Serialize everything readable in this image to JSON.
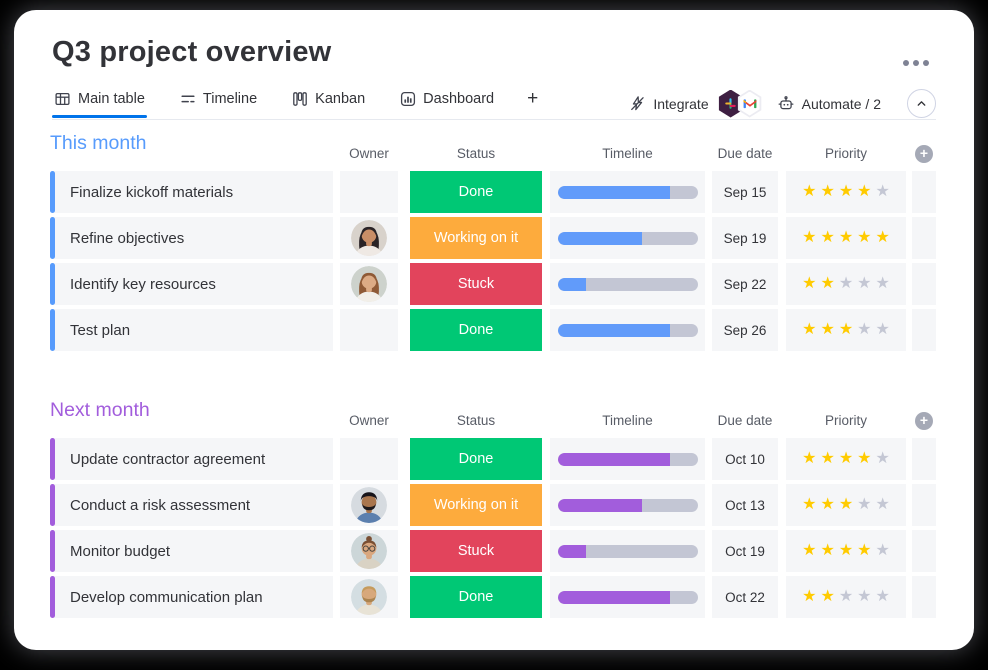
{
  "header": {
    "title": "Q3 project overview",
    "tabs": [
      {
        "label": "Main table",
        "icon": "table-icon",
        "active": true
      },
      {
        "label": "Timeline",
        "icon": "timeline-icon",
        "active": false
      },
      {
        "label": "Kanban",
        "icon": "kanban-icon",
        "active": false
      },
      {
        "label": "Dashboard",
        "icon": "dashboard-icon",
        "active": false
      }
    ],
    "add_view_label": "+",
    "integrate_label": "Integrate",
    "automate_label": "Automate / 2"
  },
  "columns": [
    "Owner",
    "Status",
    "Timeline",
    "Due date",
    "Priority"
  ],
  "icons": {
    "star_glyph": "★",
    "add_column_glyph": "+"
  },
  "colors": {
    "status": {
      "Done": "#00c875",
      "Working on it": "#fdab3d",
      "Stuck": "#e2445c"
    },
    "star_filled": "#ffcb00",
    "star_empty": "#c4c7d4",
    "timeline_track": "#c3c6d4",
    "row_bg": "#f5f6f8",
    "active_tab_underline": "#0073ea"
  },
  "groups": [
    {
      "title": "This month",
      "accent_color": "#579bfc",
      "timeline_fill": "#619bfa",
      "rows": [
        {
          "task": "Finalize kickoff materials",
          "owner": null,
          "status": "Done",
          "timeline_pct": 80,
          "due": "Sep 15",
          "priority": 4
        },
        {
          "task": "Refine objectives",
          "owner": {
            "label": "avatar-dark-haired-woman",
            "style": "long",
            "hair": "#2a2326",
            "skin": "#c98e67",
            "shirt": "#efe9e4",
            "bg": "#d8d2cb"
          },
          "status": "Working on it",
          "timeline_pct": 60,
          "due": "Sep 19",
          "priority": 5
        },
        {
          "task": "Identify key resources",
          "owner": {
            "label": "avatar-auburn-haired-woman",
            "style": "long",
            "hair": "#8f5a36",
            "skin": "#dcab85",
            "shirt": "#f2efe9",
            "bg": "#cdd2cc"
          },
          "status": "Stuck",
          "timeline_pct": 20,
          "due": "Sep 22",
          "priority": 2
        },
        {
          "task": "Test plan",
          "owner": null,
          "status": "Done",
          "timeline_pct": 80,
          "due": "Sep 26",
          "priority": 3
        }
      ]
    },
    {
      "title": "Next month",
      "accent_color": "#a25ddc",
      "timeline_fill": "#a25ddc",
      "rows": [
        {
          "task": "Update contractor agreement",
          "owner": null,
          "status": "Done",
          "timeline_pct": 80,
          "due": "Oct 10",
          "priority": 4
        },
        {
          "task": "Conduct a risk assessment",
          "owner": {
            "label": "avatar-man-with-turban",
            "style": "turban",
            "hair": "#17141a",
            "skin": "#a9764e",
            "shirt": "#5b7fae",
            "beard": "#1d191c",
            "bg": "#d6dbe0"
          },
          "status": "Working on it",
          "timeline_pct": 60,
          "due": "Oct 13",
          "priority": 3
        },
        {
          "task": "Monitor budget",
          "owner": {
            "label": "avatar-woman-with-glasses",
            "style": "bun",
            "hair": "#7a4f33",
            "skin": "#d9a77f",
            "shirt": "#d9d2c4",
            "glasses": true,
            "bg": "#ccd6d8"
          },
          "status": "Stuck",
          "timeline_pct": 20,
          "due": "Oct 19",
          "priority": 4
        },
        {
          "task": "Develop communication plan",
          "owner": {
            "label": "avatar-bearded-man",
            "style": "short",
            "hair": "#c59b5c",
            "skin": "#d7a87b",
            "shirt": "#e8e3d6",
            "beard": "#ab8450",
            "bg": "#d4dee2"
          },
          "status": "Done",
          "timeline_pct": 80,
          "due": "Oct 22",
          "priority": 2
        }
      ]
    }
  ]
}
